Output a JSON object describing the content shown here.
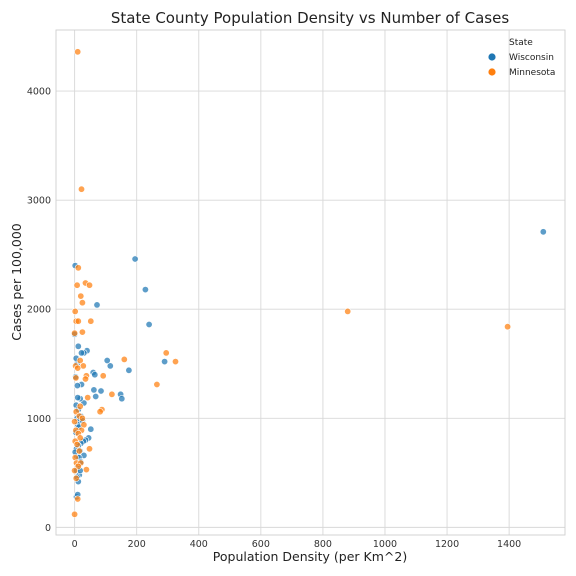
{
  "chart_data": {
    "type": "scatter",
    "title": "State County Population Density vs Number of Cases",
    "xlabel": "Population Density (per Km^2)",
    "ylabel": "Cases per 100,000",
    "xlim": [
      -60,
      1580
    ],
    "ylim": [
      -70,
      4560
    ],
    "xticks": [
      0,
      200,
      400,
      600,
      800,
      1000,
      1200,
      1400
    ],
    "yticks": [
      0,
      1000,
      2000,
      3000,
      4000
    ],
    "grid": true,
    "legend": {
      "title": "State",
      "placement": "top-right"
    },
    "series": [
      {
        "name": "Wisconsin",
        "color": "#1f77b4",
        "points": [
          [
            1510,
            2710
          ],
          [
            195,
            2460
          ],
          [
            228,
            2180
          ],
          [
            240,
            1860
          ],
          [
            72,
            2040
          ],
          [
            290,
            1520
          ],
          [
            175,
            1440
          ],
          [
            115,
            1480
          ],
          [
            105,
            1530
          ],
          [
            148,
            1220
          ],
          [
            152,
            1180
          ],
          [
            85,
            1250
          ],
          [
            60,
            1420
          ],
          [
            65,
            1400
          ],
          [
            62,
            1260
          ],
          [
            68,
            1200
          ],
          [
            40,
            1620
          ],
          [
            30,
            1600
          ],
          [
            22,
            1600
          ],
          [
            12,
            1660
          ],
          [
            8,
            1500
          ],
          [
            22,
            1310
          ],
          [
            30,
            1140
          ],
          [
            18,
            1180
          ],
          [
            10,
            1190
          ],
          [
            5,
            1120
          ],
          [
            12,
            1080
          ],
          [
            20,
            1020
          ],
          [
            8,
            1000
          ],
          [
            16,
            980
          ],
          [
            25,
            980
          ],
          [
            10,
            940
          ],
          [
            14,
            920
          ],
          [
            52,
            900
          ],
          [
            45,
            820
          ],
          [
            35,
            800
          ],
          [
            28,
            790
          ],
          [
            20,
            770
          ],
          [
            12,
            750
          ],
          [
            6,
            720
          ],
          [
            18,
            700
          ],
          [
            30,
            660
          ],
          [
            8,
            650
          ],
          [
            14,
            640
          ],
          [
            20,
            600
          ],
          [
            10,
            560
          ],
          [
            6,
            520
          ],
          [
            15,
            480
          ],
          [
            8,
            460
          ],
          [
            12,
            420
          ],
          [
            2,
            2400
          ],
          [
            0,
            1770
          ],
          [
            5,
            1550
          ],
          [
            3,
            1380
          ],
          [
            9,
            1300
          ],
          [
            4,
            870
          ],
          [
            6,
            280
          ],
          [
            10,
            300
          ],
          [
            18,
            520
          ],
          [
            2,
            690
          ]
        ]
      },
      {
        "name": "Minnesota",
        "color": "#ff7f0e",
        "points": [
          [
            10,
            4360
          ],
          [
            22,
            3100
          ],
          [
            12,
            2380
          ],
          [
            8,
            2220
          ],
          [
            35,
            2240
          ],
          [
            48,
            2220
          ],
          [
            20,
            2120
          ],
          [
            25,
            2060
          ],
          [
            2,
            1980
          ],
          [
            880,
            1980
          ],
          [
            1395,
            1840
          ],
          [
            5,
            1890
          ],
          [
            12,
            1890
          ],
          [
            52,
            1890
          ],
          [
            25,
            1790
          ],
          [
            295,
            1600
          ],
          [
            0,
            1780
          ],
          [
            160,
            1540
          ],
          [
            325,
            1520
          ],
          [
            18,
            1530
          ],
          [
            28,
            1480
          ],
          [
            3,
            1480
          ],
          [
            10,
            1460
          ],
          [
            92,
            1390
          ],
          [
            38,
            1390
          ],
          [
            35,
            1360
          ],
          [
            4,
            1370
          ],
          [
            265,
            1310
          ],
          [
            120,
            1220
          ],
          [
            42,
            1190
          ],
          [
            88,
            1080
          ],
          [
            82,
            1060
          ],
          [
            5,
            1060
          ],
          [
            15,
            1020
          ],
          [
            0,
            970
          ],
          [
            30,
            940
          ],
          [
            22,
            890
          ],
          [
            4,
            890
          ],
          [
            12,
            860
          ],
          [
            18,
            820
          ],
          [
            2,
            790
          ],
          [
            8,
            760
          ],
          [
            48,
            720
          ],
          [
            15,
            700
          ],
          [
            2,
            640
          ],
          [
            6,
            590
          ],
          [
            20,
            590
          ],
          [
            12,
            560
          ],
          [
            38,
            530
          ],
          [
            0,
            520
          ],
          [
            5,
            450
          ],
          [
            10,
            260
          ],
          [
            0,
            120
          ],
          [
            25,
            1000
          ],
          [
            18,
            1110
          ]
        ]
      }
    ]
  }
}
